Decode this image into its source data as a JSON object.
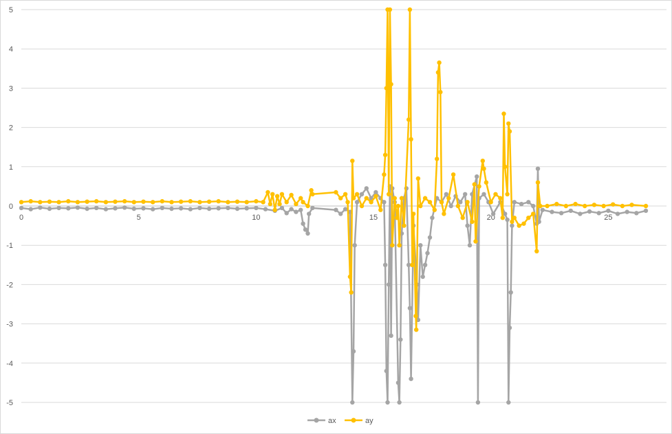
{
  "chart_data": {
    "type": "line",
    "title": "",
    "xlabel": "",
    "ylabel": "",
    "xlim": [
      0,
      26.6
    ],
    "ylim": [
      -5,
      5
    ],
    "x_ticks": [
      0,
      5,
      10,
      15,
      20,
      25
    ],
    "y_ticks": [
      5,
      4,
      3,
      2,
      1,
      0,
      -1,
      -2,
      -3,
      -4,
      -5
    ],
    "gridlines": "horizontal",
    "legend_position": "bottom",
    "series": [
      {
        "name": "ax",
        "color": "#a5a5a5",
        "points": [
          [
            0.0,
            -0.05
          ],
          [
            0.4,
            -0.08
          ],
          [
            0.8,
            -0.04
          ],
          [
            1.2,
            -0.07
          ],
          [
            1.6,
            -0.05
          ],
          [
            2.0,
            -0.06
          ],
          [
            2.4,
            -0.04
          ],
          [
            2.8,
            -0.07
          ],
          [
            3.2,
            -0.05
          ],
          [
            3.6,
            -0.08
          ],
          [
            4.0,
            -0.06
          ],
          [
            4.4,
            -0.04
          ],
          [
            4.8,
            -0.07
          ],
          [
            5.2,
            -0.06
          ],
          [
            5.6,
            -0.08
          ],
          [
            6.0,
            -0.05
          ],
          [
            6.4,
            -0.07
          ],
          [
            6.8,
            -0.06
          ],
          [
            7.2,
            -0.08
          ],
          [
            7.6,
            -0.05
          ],
          [
            8.0,
            -0.07
          ],
          [
            8.4,
            -0.06
          ],
          [
            8.8,
            -0.05
          ],
          [
            9.2,
            -0.07
          ],
          [
            9.6,
            -0.06
          ],
          [
            10.0,
            -0.05
          ],
          [
            10.4,
            -0.08
          ],
          [
            10.8,
            -0.12
          ],
          [
            11.1,
            -0.05
          ],
          [
            11.3,
            -0.18
          ],
          [
            11.5,
            -0.08
          ],
          [
            11.7,
            -0.15
          ],
          [
            11.9,
            -0.1
          ],
          [
            12.0,
            -0.45
          ],
          [
            12.1,
            -0.6
          ],
          [
            12.2,
            -0.7
          ],
          [
            12.25,
            -0.2
          ],
          [
            12.4,
            -0.05
          ],
          [
            13.4,
            -0.1
          ],
          [
            13.6,
            -0.2
          ],
          [
            13.8,
            -0.08
          ],
          [
            14.0,
            -0.15
          ],
          [
            14.1,
            -5.0
          ],
          [
            14.15,
            -3.7
          ],
          [
            14.2,
            -1.0
          ],
          [
            14.3,
            0.1
          ],
          [
            14.5,
            0.3
          ],
          [
            14.7,
            0.45
          ],
          [
            14.9,
            0.2
          ],
          [
            15.1,
            0.35
          ],
          [
            15.3,
            0.2
          ],
          [
            15.45,
            0.1
          ],
          [
            15.5,
            -1.5
          ],
          [
            15.55,
            -4.2
          ],
          [
            15.6,
            -5.0
          ],
          [
            15.65,
            -2.0
          ],
          [
            15.7,
            0.5
          ],
          [
            15.75,
            -3.3
          ],
          [
            15.8,
            0.45
          ],
          [
            15.9,
            0.1
          ],
          [
            16.05,
            -4.5
          ],
          [
            16.1,
            -5.0
          ],
          [
            16.15,
            -3.4
          ],
          [
            16.2,
            -0.7
          ],
          [
            16.3,
            0.2
          ],
          [
            16.4,
            0.45
          ],
          [
            16.5,
            -1.5
          ],
          [
            16.55,
            -2.6
          ],
          [
            16.6,
            -4.4
          ],
          [
            16.7,
            -0.5
          ],
          [
            16.85,
            -2.0
          ],
          [
            16.9,
            -2.9
          ],
          [
            17.0,
            -1.0
          ],
          [
            17.1,
            -1.8
          ],
          [
            17.2,
            -1.5
          ],
          [
            17.3,
            -1.2
          ],
          [
            17.4,
            -0.8
          ],
          [
            17.5,
            -0.3
          ],
          [
            17.7,
            0.2
          ],
          [
            17.9,
            0.1
          ],
          [
            18.1,
            0.3
          ],
          [
            18.3,
            0.0
          ],
          [
            18.5,
            0.25
          ],
          [
            18.7,
            0.1
          ],
          [
            18.9,
            0.3
          ],
          [
            19.0,
            -0.5
          ],
          [
            19.1,
            -1.0
          ],
          [
            19.2,
            0.3
          ],
          [
            19.4,
            0.75
          ],
          [
            19.45,
            -5.0
          ],
          [
            19.5,
            0.2
          ],
          [
            19.7,
            0.3
          ],
          [
            19.9,
            0.1
          ],
          [
            20.1,
            -0.2
          ],
          [
            20.4,
            0.1
          ],
          [
            20.6,
            -0.2
          ],
          [
            20.7,
            -0.35
          ],
          [
            20.75,
            -5.0
          ],
          [
            20.8,
            -3.1
          ],
          [
            20.85,
            -2.2
          ],
          [
            20.9,
            -0.5
          ],
          [
            21.0,
            0.1
          ],
          [
            21.3,
            0.05
          ],
          [
            21.6,
            0.1
          ],
          [
            21.8,
            0.0
          ],
          [
            21.95,
            -0.45
          ],
          [
            22.0,
            0.95
          ],
          [
            22.05,
            -0.4
          ],
          [
            22.2,
            -0.1
          ],
          [
            22.6,
            -0.15
          ],
          [
            23.0,
            -0.18
          ],
          [
            23.4,
            -0.12
          ],
          [
            23.8,
            -0.2
          ],
          [
            24.2,
            -0.14
          ],
          [
            24.6,
            -0.18
          ],
          [
            25.0,
            -0.12
          ],
          [
            25.4,
            -0.2
          ],
          [
            25.8,
            -0.15
          ],
          [
            26.2,
            -0.18
          ],
          [
            26.6,
            -0.12
          ]
        ]
      },
      {
        "name": "ay",
        "color": "#ffc000",
        "points": [
          [
            0.0,
            0.1
          ],
          [
            0.4,
            0.12
          ],
          [
            0.8,
            0.1
          ],
          [
            1.2,
            0.11
          ],
          [
            1.6,
            0.1
          ],
          [
            2.0,
            0.12
          ],
          [
            2.4,
            0.1
          ],
          [
            2.8,
            0.11
          ],
          [
            3.2,
            0.12
          ],
          [
            3.6,
            0.1
          ],
          [
            4.0,
            0.11
          ],
          [
            4.4,
            0.12
          ],
          [
            4.8,
            0.1
          ],
          [
            5.2,
            0.11
          ],
          [
            5.6,
            0.1
          ],
          [
            6.0,
            0.12
          ],
          [
            6.4,
            0.1
          ],
          [
            6.8,
            0.11
          ],
          [
            7.2,
            0.12
          ],
          [
            7.6,
            0.1
          ],
          [
            8.0,
            0.11
          ],
          [
            8.4,
            0.12
          ],
          [
            8.8,
            0.1
          ],
          [
            9.2,
            0.11
          ],
          [
            9.6,
            0.1
          ],
          [
            10.0,
            0.12
          ],
          [
            10.3,
            0.1
          ],
          [
            10.5,
            0.35
          ],
          [
            10.6,
            0.05
          ],
          [
            10.7,
            0.3
          ],
          [
            10.8,
            -0.1
          ],
          [
            10.9,
            0.25
          ],
          [
            11.0,
            0.05
          ],
          [
            11.1,
            0.3
          ],
          [
            11.3,
            0.1
          ],
          [
            11.5,
            0.28
          ],
          [
            11.7,
            0.05
          ],
          [
            11.9,
            0.2
          ],
          [
            12.0,
            0.1
          ],
          [
            12.2,
            0.0
          ],
          [
            12.35,
            0.4
          ],
          [
            12.4,
            0.3
          ],
          [
            13.4,
            0.35
          ],
          [
            13.6,
            0.2
          ],
          [
            13.8,
            0.3
          ],
          [
            13.9,
            0.1
          ],
          [
            14.0,
            -1.8
          ],
          [
            14.05,
            -2.2
          ],
          [
            14.1,
            1.15
          ],
          [
            14.15,
            0.2
          ],
          [
            14.3,
            0.3
          ],
          [
            14.5,
            0.0
          ],
          [
            14.7,
            0.2
          ],
          [
            14.9,
            0.1
          ],
          [
            15.1,
            0.25
          ],
          [
            15.3,
            -0.1
          ],
          [
            15.45,
            0.8
          ],
          [
            15.5,
            1.3
          ],
          [
            15.55,
            3.0
          ],
          [
            15.6,
            5.0
          ],
          [
            15.65,
            0.3
          ],
          [
            15.7,
            5.0
          ],
          [
            15.75,
            3.1
          ],
          [
            15.8,
            -1.0
          ],
          [
            15.9,
            0.2
          ],
          [
            16.0,
            -0.3
          ],
          [
            16.05,
            0.0
          ],
          [
            16.1,
            -1.0
          ],
          [
            16.2,
            0.2
          ],
          [
            16.3,
            -0.5
          ],
          [
            16.5,
            2.2
          ],
          [
            16.55,
            5.0
          ],
          [
            16.6,
            1.7
          ],
          [
            16.65,
            -1.5
          ],
          [
            16.7,
            -0.2
          ],
          [
            16.8,
            -2.8
          ],
          [
            16.82,
            -3.15
          ],
          [
            16.9,
            0.7
          ],
          [
            17.0,
            0.0
          ],
          [
            17.2,
            0.2
          ],
          [
            17.4,
            0.1
          ],
          [
            17.6,
            -0.1
          ],
          [
            17.7,
            1.2
          ],
          [
            17.75,
            3.4
          ],
          [
            17.8,
            3.65
          ],
          [
            17.85,
            2.9
          ],
          [
            17.9,
            0.1
          ],
          [
            18.0,
            -0.2
          ],
          [
            18.2,
            0.2
          ],
          [
            18.4,
            0.8
          ],
          [
            18.6,
            0.0
          ],
          [
            18.8,
            -0.3
          ],
          [
            19.0,
            0.1
          ],
          [
            19.2,
            -0.4
          ],
          [
            19.3,
            0.55
          ],
          [
            19.35,
            -0.9
          ],
          [
            19.5,
            0.5
          ],
          [
            19.65,
            1.15
          ],
          [
            19.7,
            0.95
          ],
          [
            19.8,
            0.6
          ],
          [
            20.0,
            0.1
          ],
          [
            20.2,
            0.3
          ],
          [
            20.4,
            0.2
          ],
          [
            20.5,
            -0.3
          ],
          [
            20.55,
            2.35
          ],
          [
            20.6,
            1.0
          ],
          [
            20.7,
            0.3
          ],
          [
            20.75,
            2.1
          ],
          [
            20.8,
            1.9
          ],
          [
            20.9,
            -0.4
          ],
          [
            21.0,
            -0.3
          ],
          [
            21.2,
            -0.5
          ],
          [
            21.4,
            -0.45
          ],
          [
            21.6,
            -0.3
          ],
          [
            21.8,
            -0.2
          ],
          [
            21.95,
            -1.15
          ],
          [
            22.0,
            0.6
          ],
          [
            22.1,
            0.0
          ],
          [
            22.4,
            0.0
          ],
          [
            22.8,
            0.05
          ],
          [
            23.2,
            0.0
          ],
          [
            23.6,
            0.05
          ],
          [
            24.0,
            0.0
          ],
          [
            24.4,
            0.03
          ],
          [
            24.8,
            0.0
          ],
          [
            25.2,
            0.04
          ],
          [
            25.6,
            0.0
          ],
          [
            26.0,
            0.03
          ],
          [
            26.6,
            0.0
          ]
        ]
      }
    ]
  }
}
